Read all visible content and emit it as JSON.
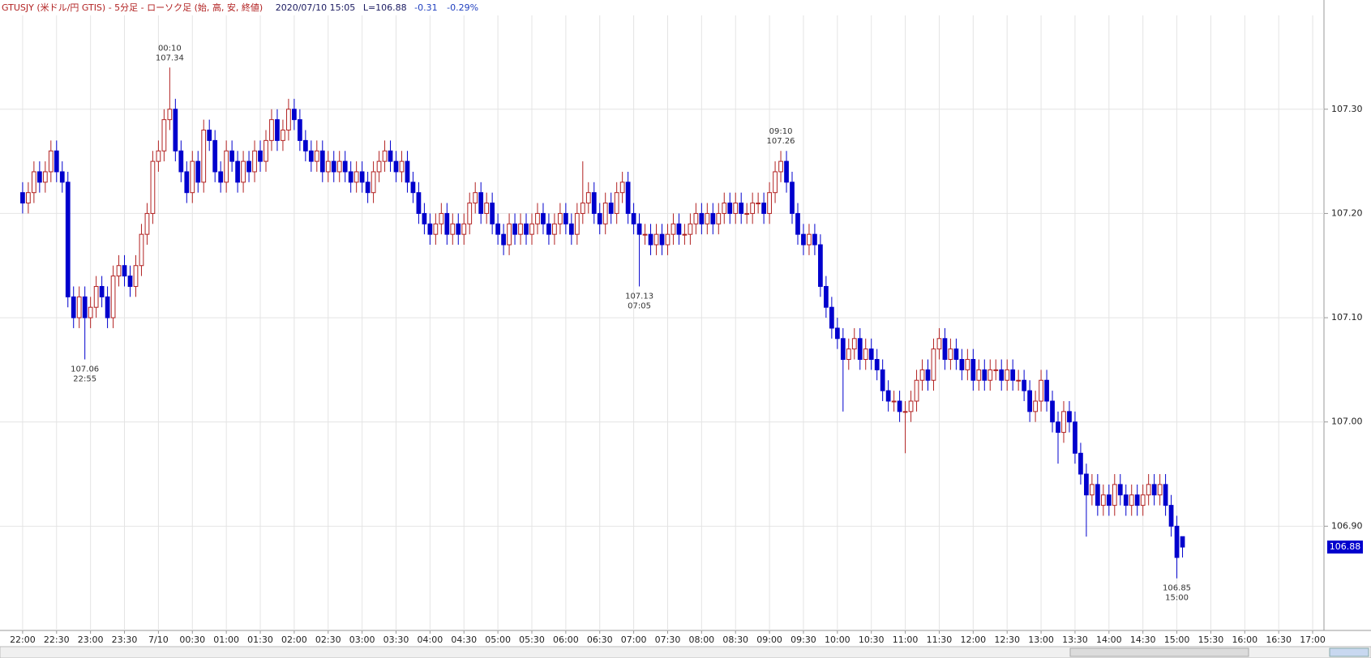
{
  "chart_data": {
    "type": "candlestick",
    "header": {
      "instrument": "GTUSJY (米ドル/円 GTIS) - 5分足 - ローソク足 (始, 高, 安, 終値)",
      "datetime": "2020/07/10 15:05",
      "last": "L=106.88",
      "change": "-0.31",
      "change_pct": "-0.29%"
    },
    "current_label": "106.88",
    "up_color": "#b22222",
    "down_color": "#0000cd",
    "grid": true,
    "xlim": [
      -4,
      230
    ],
    "ylim": [
      106.8,
      107.39
    ],
    "yticks": [
      {
        "value": 106.9,
        "label": "106.90"
      },
      {
        "value": 107,
        "label": "107.00"
      },
      {
        "value": 107.1,
        "label": "107.10"
      },
      {
        "value": 107.2,
        "label": "107.20"
      },
      {
        "value": 107.3,
        "label": "107.30"
      }
    ],
    "xticks": [
      {
        "value": 0,
        "label": "22:00"
      },
      {
        "value": 6,
        "label": "22:30"
      },
      {
        "value": 12,
        "label": "23:00"
      },
      {
        "value": 18,
        "label": "23:30"
      },
      {
        "value": 24,
        "label": "7/10"
      },
      {
        "value": 30,
        "label": "00:30"
      },
      {
        "value": 36,
        "label": "01:00"
      },
      {
        "value": 42,
        "label": "01:30"
      },
      {
        "value": 48,
        "label": "02:00"
      },
      {
        "value": 54,
        "label": "02:30"
      },
      {
        "value": 60,
        "label": "03:00"
      },
      {
        "value": 66,
        "label": "03:30"
      },
      {
        "value": 72,
        "label": "04:00"
      },
      {
        "value": 78,
        "label": "04:30"
      },
      {
        "value": 84,
        "label": "05:00"
      },
      {
        "value": 90,
        "label": "05:30"
      },
      {
        "value": 96,
        "label": "06:00"
      },
      {
        "value": 102,
        "label": "06:30"
      },
      {
        "value": 108,
        "label": "07:00"
      },
      {
        "value": 114,
        "label": "07:30"
      },
      {
        "value": 120,
        "label": "08:00"
      },
      {
        "value": 126,
        "label": "08:30"
      },
      {
        "value": 132,
        "label": "09:00"
      },
      {
        "value": 138,
        "label": "09:30"
      },
      {
        "value": 144,
        "label": "10:00"
      },
      {
        "value": 150,
        "label": "10:30"
      },
      {
        "value": 156,
        "label": "11:00"
      },
      {
        "value": 162,
        "label": "11:30"
      },
      {
        "value": 168,
        "label": "12:00"
      },
      {
        "value": 174,
        "label": "12:30"
      },
      {
        "value": 180,
        "label": "13:00"
      },
      {
        "value": 186,
        "label": "13:30"
      },
      {
        "value": 192,
        "label": "14:00"
      },
      {
        "value": 198,
        "label": "14:30"
      },
      {
        "value": 204,
        "label": "15:00"
      },
      {
        "value": 210,
        "label": "15:30"
      },
      {
        "value": 216,
        "label": "16:00"
      },
      {
        "value": 222,
        "label": "16:30"
      },
      {
        "value": 228,
        "label": "17:00"
      }
    ],
    "annotations": [
      {
        "time": "00:10",
        "price": "107.34",
        "at": "high"
      },
      {
        "time": "22:55",
        "price": "107.06",
        "at": "low"
      },
      {
        "time": "07:05",
        "price": "107.13",
        "at": "low"
      },
      {
        "time": "09:10",
        "price": "107.26",
        "at": "high"
      },
      {
        "time": "15:00",
        "price": "106.85",
        "at": "low"
      }
    ],
    "open": [
      107.22,
      107.21,
      107.22,
      107.24,
      107.23,
      107.24,
      107.26,
      107.24,
      107.23,
      107.12,
      107.1,
      107.12,
      107.1,
      107.11,
      107.13,
      107.12,
      107.1,
      107.14,
      107.15,
      107.14,
      107.13,
      107.15,
      107.18,
      107.2,
      107.25,
      107.26,
      107.29,
      107.3,
      107.26,
      107.24,
      107.22,
      107.25,
      107.23,
      107.28,
      107.27,
      107.24,
      107.23,
      107.26,
      107.25,
      107.23,
      107.25,
      107.24,
      107.26,
      107.25,
      107.27,
      107.29,
      107.27,
      107.28,
      107.3,
      107.29,
      107.27,
      107.26,
      107.25,
      107.26,
      107.24,
      107.25,
      107.24,
      107.25,
      107.24,
      107.23,
      107.24,
      107.23,
      107.22,
      107.24,
      107.25,
      107.26,
      107.25,
      107.24,
      107.25,
      107.23,
      107.22,
      107.2,
      107.19,
      107.18,
      107.19,
      107.2,
      107.18,
      107.19,
      107.18,
      107.19,
      107.21,
      107.22,
      107.2,
      107.21,
      107.19,
      107.18,
      107.17,
      107.19,
      107.18,
      107.19,
      107.18,
      107.19,
      107.2,
      107.19,
      107.18,
      107.19,
      107.2,
      107.19,
      107.18,
      107.2,
      107.21,
      107.22,
      107.2,
      107.19,
      107.21,
      107.2,
      107.22,
      107.23,
      107.2,
      107.19,
      107.18,
      107.18,
      107.17,
      107.18,
      107.17,
      107.18,
      107.19,
      107.18,
      107.18,
      107.19,
      107.2,
      107.19,
      107.2,
      107.19,
      107.2,
      107.21,
      107.2,
      107.21,
      107.2,
      107.2,
      107.21,
      107.21,
      107.2,
      107.22,
      107.24,
      107.25,
      107.23,
      107.2,
      107.18,
      107.17,
      107.18,
      107.17,
      107.13,
      107.11,
      107.09,
      107.08,
      107.06,
      107.07,
      107.08,
      107.06,
      107.07,
      107.06,
      107.05,
      107.03,
      107.02,
      107.02,
      107.01,
      107.01,
      107.02,
      107.04,
      107.05,
      107.04,
      107.07,
      107.08,
      107.06,
      107.07,
      107.06,
      107.05,
      107.06,
      107.04,
      107.05,
      107.04,
      107.05,
      107.05,
      107.04,
      107.05,
      107.04,
      107.04,
      107.03,
      107.01,
      107.02,
      107.04,
      107.02,
      107.0,
      106.99,
      107.01,
      107.0,
      106.97,
      106.95,
      106.93,
      106.94,
      106.92,
      106.93,
      106.92,
      106.94,
      106.93,
      106.92,
      106.93,
      106.92,
      106.93,
      106.94,
      106.93,
      106.94,
      106.92,
      106.9,
      106.89
    ],
    "high": [
      107.23,
      107.23,
      107.25,
      107.25,
      107.25,
      107.27,
      107.27,
      107.25,
      107.24,
      107.13,
      107.13,
      107.13,
      107.12,
      107.14,
      107.14,
      107.13,
      107.15,
      107.16,
      107.16,
      107.15,
      107.16,
      107.19,
      107.21,
      107.26,
      107.27,
      107.3,
      107.34,
      107.31,
      107.27,
      107.25,
      107.26,
      107.26,
      107.29,
      107.29,
      107.28,
      107.25,
      107.27,
      107.27,
      107.26,
      107.26,
      107.26,
      107.27,
      107.27,
      107.28,
      107.3,
      107.3,
      107.29,
      107.31,
      107.31,
      107.3,
      107.28,
      107.27,
      107.27,
      107.27,
      107.26,
      107.26,
      107.26,
      107.26,
      107.25,
      107.25,
      107.25,
      107.24,
      107.25,
      107.26,
      107.27,
      107.27,
      107.26,
      107.26,
      107.26,
      107.24,
      107.23,
      107.21,
      107.2,
      107.2,
      107.21,
      107.21,
      107.2,
      107.2,
      107.2,
      107.22,
      107.23,
      107.23,
      107.22,
      107.22,
      107.2,
      107.19,
      107.2,
      107.2,
      107.2,
      107.2,
      107.2,
      107.21,
      107.21,
      107.2,
      107.2,
      107.21,
      107.21,
      107.2,
      107.21,
      107.25,
      107.23,
      107.23,
      107.21,
      107.22,
      107.22,
      107.23,
      107.24,
      107.24,
      107.21,
      107.2,
      107.19,
      107.19,
      107.19,
      107.19,
      107.19,
      107.2,
      107.2,
      107.19,
      107.2,
      107.21,
      107.21,
      107.21,
      107.21,
      107.21,
      107.22,
      107.22,
      107.22,
      107.22,
      107.21,
      107.22,
      107.22,
      107.22,
      107.23,
      107.25,
      107.26,
      107.26,
      107.24,
      107.21,
      107.19,
      107.19,
      107.19,
      107.18,
      107.14,
      107.12,
      107.1,
      107.09,
      107.08,
      107.09,
      107.09,
      107.08,
      107.08,
      107.07,
      107.06,
      107.04,
      107.03,
      107.03,
      107.02,
      107.03,
      107.05,
      107.06,
      107.06,
      107.08,
      107.09,
      107.09,
      107.08,
      107.08,
      107.07,
      107.07,
      107.07,
      107.06,
      107.06,
      107.06,
      107.06,
      107.06,
      107.06,
      107.06,
      107.05,
      107.05,
      107.04,
      107.03,
      107.05,
      107.05,
      107.03,
      107.01,
      107.02,
      107.02,
      107.01,
      106.98,
      106.96,
      106.95,
      106.95,
      106.94,
      106.94,
      106.95,
      106.95,
      106.94,
      106.94,
      106.94,
      106.94,
      106.95,
      106.95,
      106.95,
      106.95,
      106.93,
      106.91,
      106.89
    ],
    "low": [
      107.2,
      107.2,
      107.21,
      107.22,
      107.22,
      107.23,
      107.23,
      107.22,
      107.11,
      107.09,
      107.09,
      107.06,
      107.09,
      107.1,
      107.11,
      107.09,
      107.09,
      107.13,
      107.13,
      107.12,
      107.12,
      107.14,
      107.17,
      107.19,
      107.24,
      107.25,
      107.28,
      107.25,
      107.23,
      107.21,
      107.21,
      107.22,
      107.22,
      107.26,
      107.23,
      107.22,
      107.22,
      107.24,
      107.22,
      107.22,
      107.23,
      107.23,
      107.24,
      107.24,
      107.26,
      107.26,
      107.26,
      107.27,
      107.28,
      107.26,
      107.25,
      107.24,
      107.24,
      107.23,
      107.23,
      107.23,
      107.23,
      107.23,
      107.22,
      107.22,
      107.22,
      107.21,
      107.21,
      107.23,
      107.24,
      107.24,
      107.23,
      107.23,
      107.22,
      107.21,
      107.19,
      107.18,
      107.17,
      107.17,
      107.18,
      107.17,
      107.17,
      107.17,
      107.17,
      107.18,
      107.2,
      107.19,
      107.19,
      107.18,
      107.17,
      107.16,
      107.16,
      107.17,
      107.17,
      107.17,
      107.17,
      107.18,
      107.18,
      107.17,
      107.17,
      107.18,
      107.18,
      107.17,
      107.17,
      107.19,
      107.2,
      107.19,
      107.18,
      107.18,
      107.19,
      107.19,
      107.21,
      107.19,
      107.18,
      107.13,
      107.17,
      107.16,
      107.16,
      107.16,
      107.16,
      107.17,
      107.17,
      107.17,
      107.17,
      107.18,
      107.18,
      107.18,
      107.18,
      107.18,
      107.19,
      107.19,
      107.19,
      107.19,
      107.19,
      107.19,
      107.2,
      107.19,
      107.19,
      107.21,
      107.23,
      107.22,
      107.19,
      107.17,
      107.16,
      107.16,
      107.16,
      107.12,
      107.1,
      107.08,
      107.07,
      107.01,
      107.05,
      107.06,
      107.05,
      107.05,
      107.05,
      107.04,
      107.02,
      107.01,
      107.01,
      107.0,
      106.97,
      107.0,
      107.01,
      107.03,
      107.03,
      107.03,
      107.06,
      107.05,
      107.05,
      107.05,
      107.04,
      107.04,
      107.03,
      107.03,
      107.03,
      107.03,
      107.04,
      107.03,
      107.03,
      107.03,
      107.03,
      107.02,
      107.0,
      107.0,
      107.01,
      107.01,
      106.99,
      106.96,
      106.98,
      106.99,
      106.96,
      106.94,
      106.89,
      106.92,
      106.91,
      106.91,
      106.91,
      106.91,
      106.92,
      106.91,
      106.91,
      106.91,
      106.91,
      106.92,
      106.92,
      106.92,
      106.91,
      106.89,
      106.85,
      106.87
    ],
    "close": [
      107.21,
      107.22,
      107.24,
      107.23,
      107.24,
      107.26,
      107.24,
      107.23,
      107.12,
      107.1,
      107.12,
      107.1,
      107.11,
      107.13,
      107.12,
      107.1,
      107.14,
      107.15,
      107.14,
      107.13,
      107.15,
      107.18,
      107.2,
      107.25,
      107.26,
      107.29,
      107.3,
      107.26,
      107.24,
      107.22,
      107.25,
      107.23,
      107.28,
      107.27,
      107.24,
      107.23,
      107.26,
      107.25,
      107.23,
      107.25,
      107.24,
      107.26,
      107.25,
      107.27,
      107.29,
      107.27,
      107.28,
      107.3,
      107.29,
      107.27,
      107.26,
      107.25,
      107.26,
      107.24,
      107.25,
      107.24,
      107.25,
      107.24,
      107.23,
      107.24,
      107.23,
      107.22,
      107.24,
      107.25,
      107.26,
      107.25,
      107.24,
      107.25,
      107.23,
      107.22,
      107.2,
      107.19,
      107.18,
      107.19,
      107.2,
      107.18,
      107.19,
      107.18,
      107.19,
      107.21,
      107.22,
      107.2,
      107.21,
      107.19,
      107.18,
      107.17,
      107.19,
      107.18,
      107.19,
      107.18,
      107.19,
      107.2,
      107.19,
      107.18,
      107.19,
      107.2,
      107.19,
      107.18,
      107.2,
      107.21,
      107.22,
      107.2,
      107.19,
      107.21,
      107.2,
      107.22,
      107.23,
      107.2,
      107.19,
      107.18,
      107.18,
      107.17,
      107.18,
      107.17,
      107.18,
      107.19,
      107.18,
      107.18,
      107.19,
      107.2,
      107.19,
      107.2,
      107.19,
      107.2,
      107.21,
      107.2,
      107.21,
      107.2,
      107.2,
      107.21,
      107.21,
      107.2,
      107.22,
      107.24,
      107.25,
      107.23,
      107.2,
      107.18,
      107.17,
      107.18,
      107.17,
      107.13,
      107.11,
      107.09,
      107.08,
      107.06,
      107.07,
      107.08,
      107.06,
      107.07,
      107.06,
      107.05,
      107.03,
      107.02,
      107.02,
      107.01,
      107.01,
      107.02,
      107.04,
      107.05,
      107.04,
      107.07,
      107.08,
      107.06,
      107.07,
      107.06,
      107.05,
      107.06,
      107.04,
      107.05,
      107.04,
      107.05,
      107.05,
      107.04,
      107.05,
      107.04,
      107.04,
      107.03,
      107.01,
      107.02,
      107.04,
      107.02,
      107.0,
      106.99,
      107.01,
      107.0,
      106.97,
      106.95,
      106.93,
      106.94,
      106.92,
      106.93,
      106.92,
      106.94,
      106.93,
      106.92,
      106.93,
      106.92,
      106.93,
      106.94,
      106.93,
      106.94,
      106.92,
      106.9,
      106.87,
      106.88
    ]
  }
}
